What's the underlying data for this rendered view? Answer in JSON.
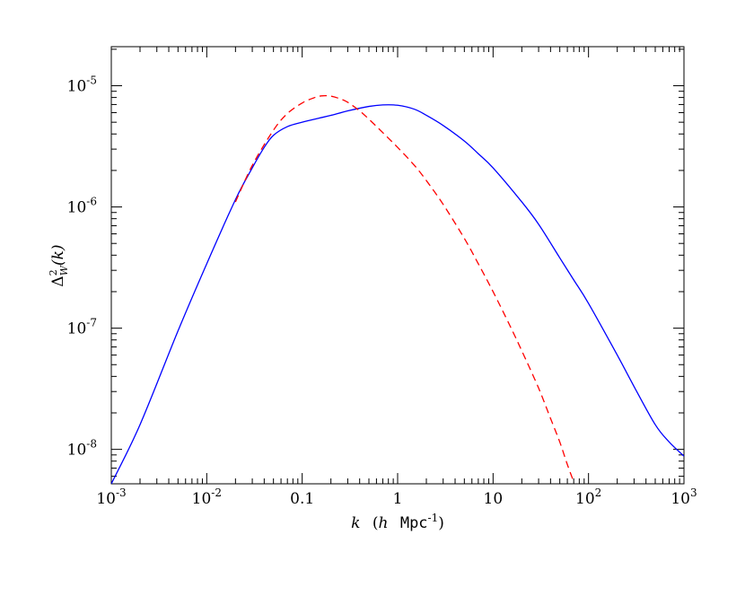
{
  "chart_data": {
    "type": "line",
    "xscale": "log",
    "yscale": "log",
    "xlim": [
      0.001,
      1000
    ],
    "ylim": [
      5.2e-09,
      2.1e-05
    ],
    "grid": false,
    "title": "",
    "xlabel": {
      "var": "k",
      "open": "(",
      "h": "h",
      "unit": "Mpc",
      "exp": "-1",
      "close": ")"
    },
    "ylabel": {
      "symbol": "Δ",
      "sup": "2",
      "sub": "W",
      "arg": "(k)"
    },
    "x_ticks": [
      {
        "value": 0.001,
        "base": "10",
        "exp": "-3"
      },
      {
        "value": 0.01,
        "base": "10",
        "exp": "-2"
      },
      {
        "value": 0.1,
        "base": "0.1",
        "exp": ""
      },
      {
        "value": 1,
        "base": "1",
        "exp": ""
      },
      {
        "value": 10,
        "base": "10",
        "exp": ""
      },
      {
        "value": 100,
        "base": "10",
        "exp": "2"
      },
      {
        "value": 1000,
        "base": "10",
        "exp": "3"
      }
    ],
    "y_ticks": [
      {
        "value": 1e-08,
        "base": "10",
        "exp": "-8"
      },
      {
        "value": 1e-07,
        "base": "10",
        "exp": "-7"
      },
      {
        "value": 1e-06,
        "base": "10",
        "exp": "-6"
      },
      {
        "value": 1e-05,
        "base": "10",
        "exp": "-5"
      }
    ],
    "series": [
      {
        "color": "#0000ff",
        "style": "solid",
        "x": [
          0.001,
          0.002,
          0.005,
          0.01,
          0.02,
          0.03,
          0.04,
          0.05,
          0.07,
          0.1,
          0.15,
          0.2,
          0.3,
          0.5,
          0.7,
          1,
          1.5,
          2,
          3,
          5,
          7,
          10,
          20,
          30,
          50,
          70,
          100,
          200,
          300,
          500,
          700,
          1000
        ],
        "y": [
          5.2e-09,
          1.6e-08,
          9.5e-08,
          3.4e-07,
          1.15e-06,
          2.1e-06,
          3.1e-06,
          3.9e-06,
          4.6e-06,
          5e-06,
          5.4e-06,
          5.7e-06,
          6.2e-06,
          6.75e-06,
          6.95e-06,
          6.9e-06,
          6.4e-06,
          5.7e-06,
          4.7e-06,
          3.5e-06,
          2.75e-06,
          2.1e-06,
          1.1e-06,
          7.2e-07,
          3.8e-07,
          2.5e-07,
          1.6e-07,
          6e-08,
          3.3e-08,
          1.6e-08,
          1.15e-08,
          8.8e-09
        ]
      },
      {
        "color": "#ff0000",
        "style": "dashed",
        "x": [
          0.02,
          0.03,
          0.05,
          0.07,
          0.1,
          0.13,
          0.16,
          0.2,
          0.25,
          0.3,
          0.4,
          0.5,
          0.7,
          1,
          1.5,
          2,
          3,
          5,
          7,
          10,
          15,
          20,
          30,
          40,
          50,
          60,
          70
        ],
        "y": [
          1.1e-06,
          2.2e-06,
          4.3e-06,
          5.9e-06,
          7.2e-06,
          7.9e-06,
          8.25e-06,
          8.2e-06,
          7.8e-06,
          7.3e-06,
          6.2e-06,
          5.3e-06,
          4.1e-06,
          3.1e-06,
          2.2e-06,
          1.65e-06,
          1.05e-06,
          5.5e-07,
          3.4e-07,
          2e-07,
          1.05e-07,
          6.5e-08,
          3.2e-08,
          1.8e-08,
          1.15e-08,
          7.5e-09,
          5.4e-09
        ]
      }
    ]
  }
}
